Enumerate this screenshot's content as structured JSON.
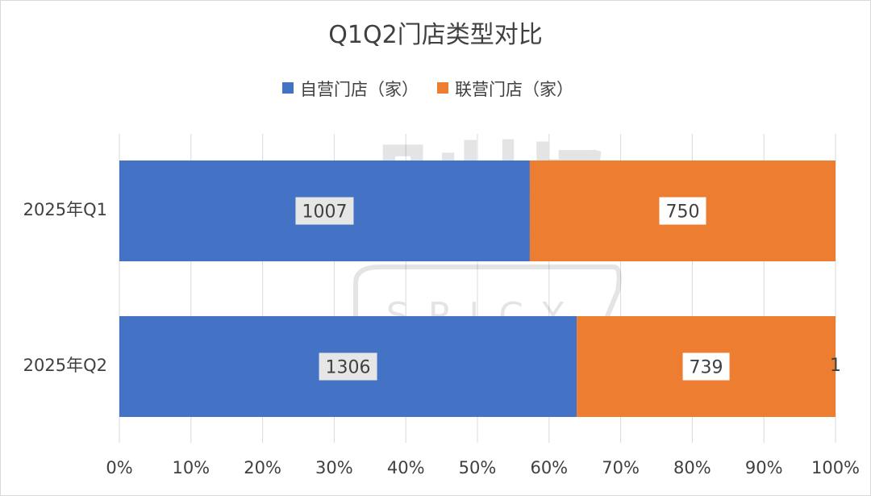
{
  "chart_data": {
    "type": "bar",
    "orientation": "horizontal",
    "stacked": "percent",
    "title": "Q1Q2门店类型对比",
    "categories": [
      "2025年Q1",
      "2025年Q2"
    ],
    "series": [
      {
        "name": "自营门店（家）",
        "values": [
          1007,
          1306
        ],
        "color": "#4472C4"
      },
      {
        "name": "联营门店（家）",
        "values": [
          750,
          739
        ],
        "color": "#ED7D31"
      }
    ],
    "xlim": [
      0,
      100
    ],
    "x_ticks": [
      "0%",
      "10%",
      "20%",
      "30%",
      "40%",
      "50%",
      "60%",
      "70%",
      "80%",
      "90%",
      "100%"
    ],
    "grid": true,
    "legend_position": "top",
    "stray_label": "1"
  }
}
